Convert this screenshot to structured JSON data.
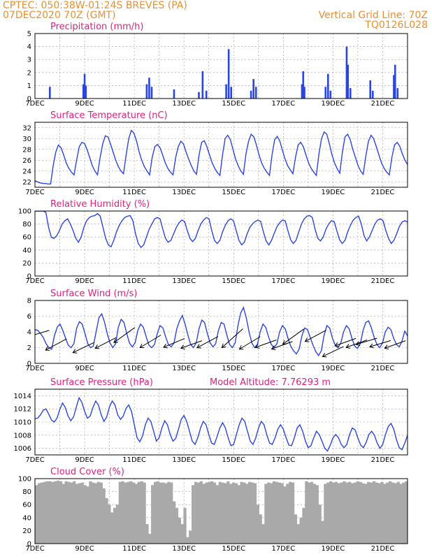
{
  "header": {
    "line1": "CPTEC:  050:38W-01:24S  BREVES (PA)",
    "line2": "07DEC2020 70Z (GMT)",
    "grid_note": "Vertical Grid Line: 70Z",
    "model": "TQ0126L028"
  },
  "colors": {
    "header": "#e8902f",
    "title": "#e0207f",
    "series": "#2b45e0",
    "cloud": "#a9a9a9"
  },
  "x_ticks": [
    "7DEC",
    "9DEC",
    "11DEC",
    "13DEC",
    "15DEC",
    "17DEC",
    "19DEC",
    "21DEC"
  ],
  "chart_data": [
    {
      "id": "precip",
      "type": "bar",
      "title": "Precipitation (mm/h)",
      "ylim": [
        0,
        5
      ],
      "yticks": [
        0,
        1,
        2,
        3,
        4,
        5
      ],
      "bars": [
        [
          0.6,
          0.9
        ],
        [
          1.95,
          1.1
        ],
        [
          2.0,
          1.9
        ],
        [
          2.05,
          1.0
        ],
        [
          4.5,
          1.1
        ],
        [
          4.6,
          1.6
        ],
        [
          4.7,
          0.9
        ],
        [
          5.6,
          0.7
        ],
        [
          6.6,
          0.5
        ],
        [
          6.75,
          2.1
        ],
        [
          6.9,
          0.6
        ],
        [
          7.7,
          1.1
        ],
        [
          7.8,
          3.8
        ],
        [
          7.9,
          0.9
        ],
        [
          8.7,
          0.6
        ],
        [
          8.8,
          1.5
        ],
        [
          8.9,
          0.9
        ],
        [
          10.75,
          1.1
        ],
        [
          10.8,
          2.1
        ],
        [
          10.85,
          0.9
        ],
        [
          11.7,
          0.9
        ],
        [
          11.8,
          1.9
        ],
        [
          11.9,
          0.6
        ],
        [
          12.55,
          4.0
        ],
        [
          12.6,
          2.6
        ],
        [
          12.7,
          0.8
        ],
        [
          13.5,
          1.4
        ],
        [
          13.6,
          0.6
        ],
        [
          14.45,
          1.8
        ],
        [
          14.5,
          2.6
        ],
        [
          14.6,
          0.8
        ]
      ]
    },
    {
      "id": "temp",
      "type": "line",
      "title": "Surface Temperature (nC)",
      "ylim": [
        21,
        33
      ],
      "yticks": [
        22,
        24,
        26,
        28,
        30,
        32
      ],
      "values": [
        22.2,
        22.0,
        21.8,
        21.7,
        21.7,
        21.6,
        21.6,
        25.0,
        27.5,
        28.8,
        28.3,
        27.0,
        25.5,
        24.5,
        23.8,
        23.3,
        26.0,
        28.5,
        29.3,
        29.1,
        28.0,
        26.5,
        25.0,
        24.0,
        23.3,
        26.5,
        29.0,
        30.5,
        30.3,
        29.0,
        27.5,
        26.0,
        24.8,
        24.0,
        23.5,
        27.0,
        30.0,
        31.5,
        31.0,
        29.5,
        27.5,
        26.0,
        24.8,
        24.0,
        23.3,
        26.5,
        28.5,
        28.9,
        28.3,
        27.0,
        25.5,
        24.5,
        23.8,
        23.3,
        26.5,
        28.5,
        29.5,
        29.0,
        27.5,
        26.2,
        25.0,
        24.0,
        23.4,
        27.0,
        29.3,
        29.6,
        28.5,
        27.0,
        25.5,
        24.5,
        23.7,
        23.2,
        27.0,
        30.0,
        30.6,
        29.8,
        28.0,
        26.2,
        25.0,
        24.0,
        23.4,
        27.2,
        29.5,
        30.8,
        30.3,
        28.8,
        27.0,
        25.5,
        24.5,
        23.8,
        23.2,
        27.0,
        29.8,
        30.4,
        29.5,
        27.8,
        26.2,
        25.0,
        24.2,
        23.5,
        26.5,
        28.8,
        29.3,
        28.5,
        27.0,
        25.5,
        24.5,
        23.8,
        23.2,
        27.2,
        30.0,
        31.2,
        30.8,
        29.0,
        27.0,
        25.5,
        24.4,
        23.6,
        27.5,
        30.3,
        30.8,
        29.8,
        28.0,
        26.5,
        25.0,
        24.0,
        23.4,
        26.8,
        29.5,
        30.6,
        30.0,
        28.5,
        27.0,
        25.5,
        24.5,
        23.8,
        23.3,
        26.5,
        28.8,
        29.3,
        28.6,
        27.2,
        26.0,
        25.2
      ]
    },
    {
      "id": "rh",
      "type": "line",
      "title": "Relative Humidity (%)",
      "ylim": [
        0,
        100
      ],
      "yticks": [
        0,
        20,
        40,
        60,
        80,
        100
      ],
      "values": [
        100,
        100,
        100,
        100,
        98,
        75,
        60,
        58,
        62,
        70,
        80,
        85,
        88,
        80,
        70,
        58,
        52,
        60,
        75,
        85,
        90,
        92,
        93,
        96,
        92,
        75,
        58,
        48,
        45,
        55,
        68,
        78,
        85,
        90,
        92,
        93,
        85,
        65,
        50,
        44,
        48,
        60,
        72,
        80,
        88,
        90,
        88,
        72,
        58,
        52,
        55,
        65,
        75,
        82,
        86,
        84,
        70,
        58,
        53,
        58,
        70,
        80,
        86,
        90,
        88,
        70,
        55,
        50,
        55,
        68,
        78,
        85,
        88,
        85,
        70,
        55,
        48,
        52,
        65,
        75,
        80,
        84,
        86,
        84,
        68,
        54,
        48,
        55,
        66,
        76,
        82,
        86,
        85,
        70,
        56,
        50,
        55,
        68,
        80,
        88,
        92,
        93,
        90,
        72,
        58,
        54,
        60,
        72,
        80,
        85,
        84,
        70,
        56,
        50,
        55,
        68,
        78,
        86,
        90,
        92,
        80,
        62,
        54,
        60,
        70,
        80,
        86,
        88,
        85,
        70,
        58,
        50,
        55,
        65,
        76,
        83,
        85,
        83
      ]
    },
    {
      "id": "wind",
      "type": "line",
      "title": "Surface Wind (m/s)",
      "ylim": [
        0,
        8
      ],
      "yticks": [
        0,
        2,
        4,
        6,
        8
      ],
      "values": [
        4.3,
        4.2,
        3.8,
        3.3,
        2.5,
        2.0,
        1.8,
        3.5,
        4.6,
        5.0,
        4.2,
        3.2,
        2.3,
        2.0,
        2.5,
        4.5,
        5.3,
        5.0,
        3.8,
        2.5,
        2.0,
        2.2,
        4.0,
        5.8,
        6.3,
        5.3,
        3.8,
        2.6,
        2.0,
        2.5,
        4.6,
        5.6,
        5.2,
        3.8,
        2.6,
        2.1,
        2.6,
        4.2,
        5.0,
        4.6,
        3.4,
        2.3,
        2.0,
        2.4,
        3.8,
        4.8,
        4.5,
        3.4,
        2.4,
        2.1,
        2.6,
        4.4,
        5.4,
        6.1,
        5.0,
        3.6,
        2.4,
        2.0,
        2.6,
        4.4,
        5.5,
        5.2,
        3.8,
        2.6,
        2.1,
        2.5,
        4.2,
        5.2,
        5.0,
        3.6,
        2.4,
        2.0,
        2.6,
        4.8,
        6.4,
        7.1,
        5.8,
        4.0,
        2.6,
        2.0,
        2.4,
        4.0,
        5.0,
        4.6,
        3.4,
        2.4,
        2.0,
        2.5,
        4.0,
        4.8,
        4.4,
        3.2,
        2.2,
        1.6,
        1.2,
        1.8,
        3.5,
        4.5,
        4.3,
        3.3,
        2.3,
        1.5,
        1.0,
        1.6,
        3.6,
        4.8,
        4.5,
        3.2,
        2.3,
        2.0,
        2.6,
        4.0,
        4.8,
        4.4,
        3.2,
        2.2,
        1.9,
        2.5,
        4.2,
        5.2,
        5.4,
        4.5,
        3.3,
        2.4,
        2.0,
        2.6,
        4.0,
        4.6,
        4.3,
        3.2,
        2.4,
        2.1,
        2.8,
        4.1,
        3.5
      ],
      "arrows": [
        [
          0.15,
          3.8,
          0.5
        ],
        [
          0.85,
          2.4,
          0.9
        ],
        [
          1.95,
          2.0,
          0.8
        ],
        [
          2.85,
          2.6,
          0.85
        ],
        [
          3.6,
          3.6,
          1.2
        ],
        [
          4.65,
          2.8,
          1.0
        ],
        [
          5.6,
          2.6,
          0.7
        ],
        [
          6.3,
          2.4,
          0.6
        ],
        [
          6.95,
          2.7,
          0.9
        ],
        [
          7.95,
          3.2,
          1.5
        ],
        [
          8.65,
          2.6,
          1.0
        ],
        [
          9.3,
          2.5,
          0.6
        ],
        [
          9.95,
          2.3,
          0.6
        ],
        [
          10.4,
          3.4,
          1.2
        ],
        [
          11.3,
          3.5,
          0.9
        ],
        [
          12.0,
          1.5,
          0.8
        ],
        [
          12.5,
          2.7,
          0.6
        ],
        [
          12.95,
          2.5,
          0.6
        ],
        [
          13.35,
          2.8,
          0.5
        ],
        [
          13.9,
          2.5,
          0.5
        ],
        [
          14.5,
          2.4,
          0.6
        ]
      ]
    },
    {
      "id": "pres",
      "type": "line",
      "title": "Surface Pressure (hPa)",
      "note": "Model Altitude: 7.76293 m",
      "ylim": [
        1005,
        1015
      ],
      "yticks": [
        1006,
        1008,
        1010,
        1012,
        1014
      ],
      "values": [
        1010.5,
        1010.6,
        1011.1,
        1011.8,
        1012.0,
        1011.2,
        1010.3,
        1010.0,
        1010.6,
        1011.9,
        1012.9,
        1012.2,
        1010.9,
        1010.2,
        1010.8,
        1012.3,
        1013.7,
        1013.0,
        1011.6,
        1010.6,
        1010.9,
        1012.2,
        1013.2,
        1012.6,
        1011.1,
        1010.1,
        1010.8,
        1012.3,
        1013.2,
        1012.6,
        1011.1,
        1010.4,
        1010.9,
        1012.1,
        1012.6,
        1011.6,
        1009.6,
        1007.6,
        1007.0,
        1007.9,
        1009.6,
        1010.6,
        1010.1,
        1008.6,
        1007.1,
        1007.6,
        1009.1,
        1010.2,
        1009.6,
        1008.1,
        1007.1,
        1007.5,
        1008.9,
        1010.4,
        1011.0,
        1010.1,
        1008.6,
        1007.1,
        1006.6,
        1007.6,
        1009.1,
        1010.1,
        1009.6,
        1008.1,
        1006.8,
        1006.6,
        1007.8,
        1009.1,
        1009.9,
        1009.1,
        1007.6,
        1006.4,
        1006.6,
        1008.1,
        1009.6,
        1010.6,
        1010.1,
        1008.6,
        1007.1,
        1006.6,
        1007.6,
        1009.1,
        1010.1,
        1009.6,
        1008.1,
        1006.8,
        1006.6,
        1007.6,
        1008.9,
        1009.6,
        1008.9,
        1007.6,
        1006.5,
        1006.4,
        1007.6,
        1009.1,
        1009.6,
        1008.6,
        1007.1,
        1006.1,
        1006.4,
        1007.6,
        1008.6,
        1008.1,
        1007.1,
        1006.0,
        1005.6,
        1006.5,
        1007.6,
        1008.1,
        1007.6,
        1006.6,
        1006.1,
        1006.6,
        1008.1,
        1009.1,
        1008.8,
        1007.6,
        1006.5,
        1006.1,
        1006.9,
        1008.1,
        1008.6,
        1008.0,
        1006.8,
        1006.0,
        1006.6,
        1008.1,
        1009.3,
        1009.8,
        1008.9,
        1007.3,
        1006.1,
        1005.8,
        1006.8,
        1008.0
      ]
    },
    {
      "id": "cloud",
      "type": "bar",
      "title": "Cloud Cover (%)",
      "ylim": [
        0,
        100
      ],
      "yticks": [
        0,
        20,
        40,
        60,
        80,
        100
      ],
      "values": [
        90,
        93,
        94,
        95,
        96,
        96,
        95,
        96,
        97,
        96,
        92,
        96,
        95,
        94,
        96,
        92,
        93,
        94,
        90,
        88,
        96,
        94,
        93,
        95,
        94,
        85,
        70,
        60,
        48,
        55,
        60,
        95,
        96,
        94,
        95,
        96,
        94,
        92,
        95,
        96,
        94,
        30,
        15,
        90,
        95,
        96,
        94,
        94,
        93,
        95,
        94,
        65,
        55,
        40,
        30,
        55,
        10,
        20,
        90,
        95,
        94,
        96,
        92,
        94,
        95,
        96,
        94,
        90,
        95,
        94,
        93,
        96,
        92,
        94,
        93,
        90,
        95,
        94,
        92,
        95,
        94,
        93,
        60,
        45,
        30,
        92,
        94,
        93,
        96,
        95,
        94,
        93,
        88,
        92,
        95,
        94,
        45,
        30,
        40,
        55,
        96,
        94,
        95,
        92,
        90,
        60,
        35,
        92,
        94,
        96,
        94,
        95,
        93,
        94,
        96,
        94,
        95,
        93,
        94,
        96,
        95,
        93,
        92,
        95,
        94,
        96,
        94,
        93,
        95,
        92,
        94,
        96,
        94,
        93,
        95,
        92,
        94,
        96
      ]
    }
  ]
}
